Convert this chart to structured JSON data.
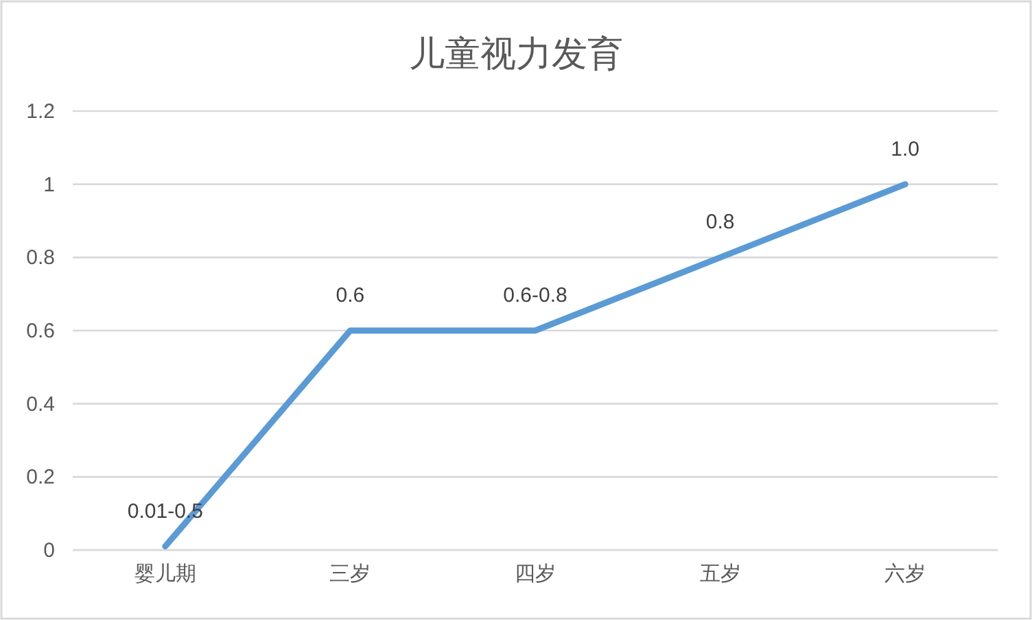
{
  "chart_data": {
    "type": "line",
    "title": "儿童视力发育",
    "categories": [
      "婴儿期",
      "三岁",
      "四岁",
      "五岁",
      "六岁"
    ],
    "values": [
      0.01,
      0.6,
      0.6,
      0.8,
      1.0
    ],
    "value_labels": [
      "0.01-0.5",
      "0.6",
      "0.6-0.8",
      "0.8",
      "1.0"
    ],
    "color": "#5b9bd5",
    "ylim": [
      0,
      1.2
    ],
    "yticks": [
      0,
      0.2,
      0.4,
      0.6,
      0.8,
      1,
      1.2
    ],
    "grid": "y",
    "line_style": "solid"
  }
}
